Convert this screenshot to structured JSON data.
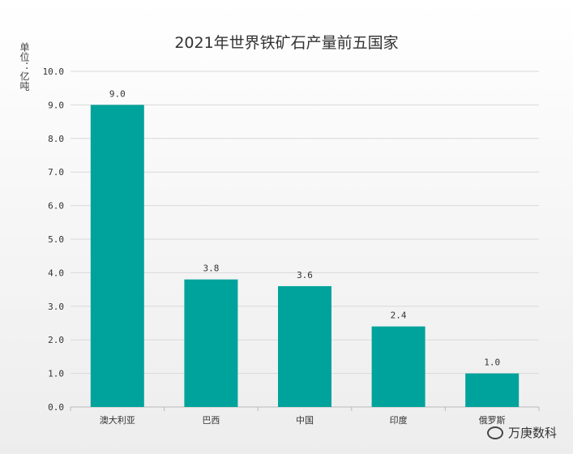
{
  "chart_data": {
    "type": "bar",
    "title": "2021年世界铁矿石产量前五国家",
    "unit_label": "单位：亿吨",
    "categories": [
      "澳大利亚",
      "巴西",
      "中国",
      "印度",
      "俄罗斯"
    ],
    "values": [
      9.0,
      3.8,
      3.6,
      2.4,
      1.0
    ],
    "value_labels": [
      "9.0",
      "3.8",
      "3.6",
      "2.4",
      "1.0"
    ],
    "ylim": [
      0,
      10
    ],
    "yticks": [
      "0.0",
      "1.0",
      "2.0",
      "3.0",
      "4.0",
      "5.0",
      "6.0",
      "7.0",
      "8.0",
      "9.0",
      "10.0"
    ],
    "grid": true,
    "bar_color": "#00a39b"
  },
  "watermark": {
    "text": "万庚数科",
    "icon": "wechat-icon"
  }
}
